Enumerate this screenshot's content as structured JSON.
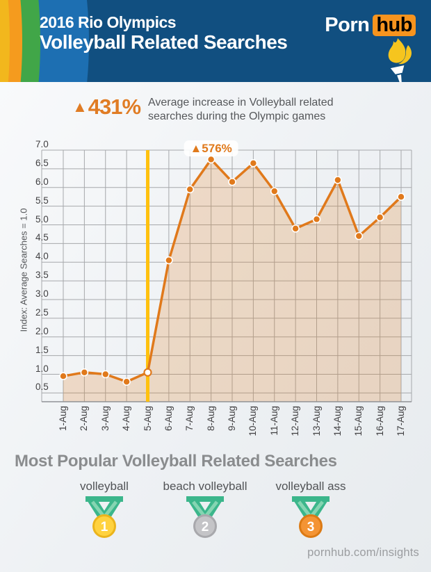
{
  "header": {
    "title_line1": "2016 Rio Olympics",
    "title_line2": "Volleyball Related Searches",
    "logo_part1": "Porn",
    "logo_part2": "hub",
    "colors": {
      "bg": "#114F80",
      "logo_box": "#F7941E",
      "arc_yellow": "#F2B71D",
      "arc_orange": "#F59B1E",
      "arc_green": "#41A648",
      "arc_blue": "#1D6FB2",
      "flame": "#F6C51E"
    }
  },
  "stat": {
    "arrow": "▲",
    "value": "431%",
    "description_line1": "Average increase in Volleyball related",
    "description_line2": "searches during the Olympic games",
    "color": "#E07C24"
  },
  "chart_data": {
    "type": "line",
    "title": "",
    "xlabel": "",
    "ylabel": "Index: Average Searches = 1.0",
    "x": [
      "1-Aug",
      "2-Aug",
      "3-Aug",
      "4-Aug",
      "5-Aug",
      "6-Aug",
      "7-Aug",
      "8-Aug",
      "9-Aug",
      "10-Aug",
      "11-Aug",
      "12-Aug",
      "13-Aug",
      "14-Aug",
      "15-Aug",
      "16-Aug",
      "17-Aug"
    ],
    "values": [
      0.95,
      1.05,
      1.0,
      0.8,
      1.05,
      4.05,
      5.95,
      6.75,
      6.15,
      6.65,
      5.9,
      4.9,
      5.15,
      6.2,
      4.7,
      5.2,
      5.75
    ],
    "ytick_labels": [
      "7.0",
      "6.5",
      "6.0",
      "5.5",
      "5.0",
      "4.5",
      "4.0",
      "3.5",
      "3.0",
      "2.5",
      "2.0",
      "1.5",
      "1.0",
      "0.5"
    ],
    "ylim": [
      0.25,
      7.0
    ],
    "grid": true,
    "legend": "none",
    "line_color": "#E0791B",
    "area_color": "rgba(224,122,27,0.22)",
    "grid_color": "#A6A8AB",
    "marker_white_index": 4,
    "event_line": {
      "x_index": 4,
      "date": "5-Aug",
      "color": "#FFC10E"
    },
    "annotation": {
      "text": "▲576%",
      "x_index": 7,
      "date": "8-Aug",
      "color": "#E0791B"
    }
  },
  "podium": {
    "heading": "Most Popular Volleyball Related Searches",
    "ribbon": {
      "main": "#3BB68B",
      "stripe": "#85D5B2"
    },
    "items": [
      {
        "rank": "1",
        "label": "volleyball",
        "medal_fill": "#FFD23F",
        "medal_ring": "#EBB41C"
      },
      {
        "rank": "2",
        "label": "beach volleyball",
        "medal_fill": "#C4C4C7",
        "medal_ring": "#A8A8AC"
      },
      {
        "rank": "3",
        "label": "volleyball ass",
        "medal_fill": "#F49434",
        "medal_ring": "#DC7A14"
      }
    ]
  },
  "footer": {
    "link": "pornhub.com/insights"
  }
}
